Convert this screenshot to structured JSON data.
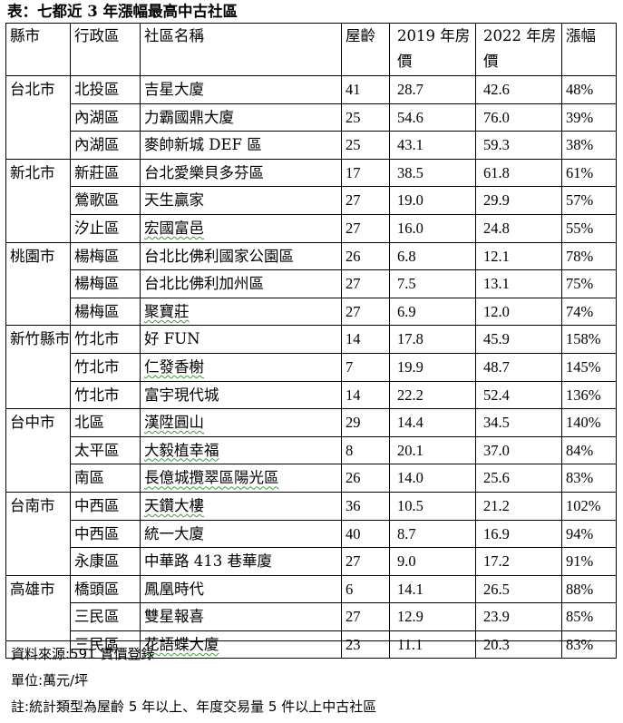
{
  "title": "表：七都近 3 年漲幅最高中古社區",
  "headers": {
    "city": "縣市",
    "district": "行政區",
    "community": "社區名稱",
    "age": "屋齡",
    "price2019": "2019 年房價",
    "price2022": "2022 年房價",
    "growth": "漲幅"
  },
  "groups": [
    {
      "city": "台北市",
      "rows": [
        {
          "district": "北投區",
          "community": "吉星大廈",
          "age": "41",
          "p2019": "28.7",
          "p2022": "42.6",
          "growth": "48%"
        },
        {
          "district": "內湖區",
          "community": "力霸國鼎大廈",
          "age": "25",
          "p2019": "54.6",
          "p2022": "76.0",
          "growth": "39%"
        },
        {
          "district": "內湖區",
          "community": "麥帥新城 DEF 區",
          "age": "25",
          "p2019": "43.1",
          "p2022": "59.3",
          "growth": "38%"
        }
      ]
    },
    {
      "city": "新北市",
      "rows": [
        {
          "district": "新莊區",
          "community": "台北愛樂貝多芬區",
          "age": "17",
          "p2019": "38.5",
          "p2022": "61.8",
          "growth": "61%"
        },
        {
          "district": "鶯歌區",
          "community": "天生贏家",
          "age": "27",
          "p2019": "19.0",
          "p2022": "29.9",
          "growth": "57%"
        },
        {
          "district": "汐止區",
          "community": "宏國富邑",
          "age": "27",
          "p2019": "16.0",
          "p2022": "24.8",
          "growth": "55%"
        }
      ]
    },
    {
      "city": "桃園市",
      "rows": [
        {
          "district": "楊梅區",
          "community": "台北比佛利國家公園區",
          "age": "26",
          "p2019": "6.8",
          "p2022": "12.1",
          "growth": "78%"
        },
        {
          "district": "楊梅區",
          "community": "台北比佛利加州區",
          "age": "27",
          "p2019": "7.5",
          "p2022": "13.1",
          "growth": "75%"
        },
        {
          "district": "楊梅區",
          "community": "聚寶莊",
          "age": "27",
          "p2019": "6.9",
          "p2022": "12.0",
          "growth": "74%"
        }
      ]
    },
    {
      "city": "新竹縣市",
      "rows": [
        {
          "district": "竹北市",
          "community": "好 FUN",
          "age": "14",
          "p2019": "17.8",
          "p2022": "45.9",
          "growth": "158%"
        },
        {
          "district": "竹北市",
          "community": "仁發香榭",
          "age": "7",
          "p2019": "19.9",
          "p2022": "48.7",
          "growth": "145%"
        },
        {
          "district": "竹北市",
          "community": "富宇現代城",
          "age": "14",
          "p2019": "22.2",
          "p2022": "52.4",
          "growth": "136%"
        }
      ]
    },
    {
      "city": "台中市",
      "rows": [
        {
          "district": "北區",
          "community": "漢陞圓山",
          "age": "29",
          "p2019": "14.4",
          "p2022": "34.5",
          "growth": "140%"
        },
        {
          "district": "太平區",
          "community": "大毅植幸福",
          "age": "8",
          "p2019": "20.1",
          "p2022": "37.0",
          "growth": "84%"
        },
        {
          "district": "南區",
          "community": "長億城攬翠區陽光區",
          "age": "26",
          "p2019": "14.0",
          "p2022": "25.6",
          "growth": "83%"
        }
      ]
    },
    {
      "city": "台南市",
      "rows": [
        {
          "district": "中西區",
          "community": "天鑽大樓",
          "age": "36",
          "p2019": "10.5",
          "p2022": "21.2",
          "growth": "102%"
        },
        {
          "district": "中西區",
          "community": "統一大廈",
          "age": "40",
          "p2019": "8.7",
          "p2022": "16.9",
          "growth": "94%"
        },
        {
          "district": "永康區",
          "community": "中華路 413 巷華廈",
          "age": "27",
          "p2019": "9.0",
          "p2022": "17.2",
          "growth": "91%"
        }
      ]
    },
    {
      "city": "高雄市",
      "rows": [
        {
          "district": "橋頭區",
          "community": "鳳凰時代",
          "age": "6",
          "p2019": "14.1",
          "p2022": "26.5",
          "growth": "88%"
        },
        {
          "district": "三民區",
          "community": "雙星報喜",
          "age": "27",
          "p2019": "12.9",
          "p2022": "23.9",
          "growth": "85%"
        },
        {
          "district": "三民區",
          "community": "花語蝶大廈",
          "age": "23",
          "p2019": "11.1",
          "p2022": "20.3",
          "growth": "83%"
        }
      ]
    }
  ],
  "footer": {
    "source": "資料來源:591 實價登錄",
    "unit": "單位:萬元/坪",
    "note": "註:統計類型為屋齡 5 年以上、年度交易量 5 件以上中古社區"
  }
}
